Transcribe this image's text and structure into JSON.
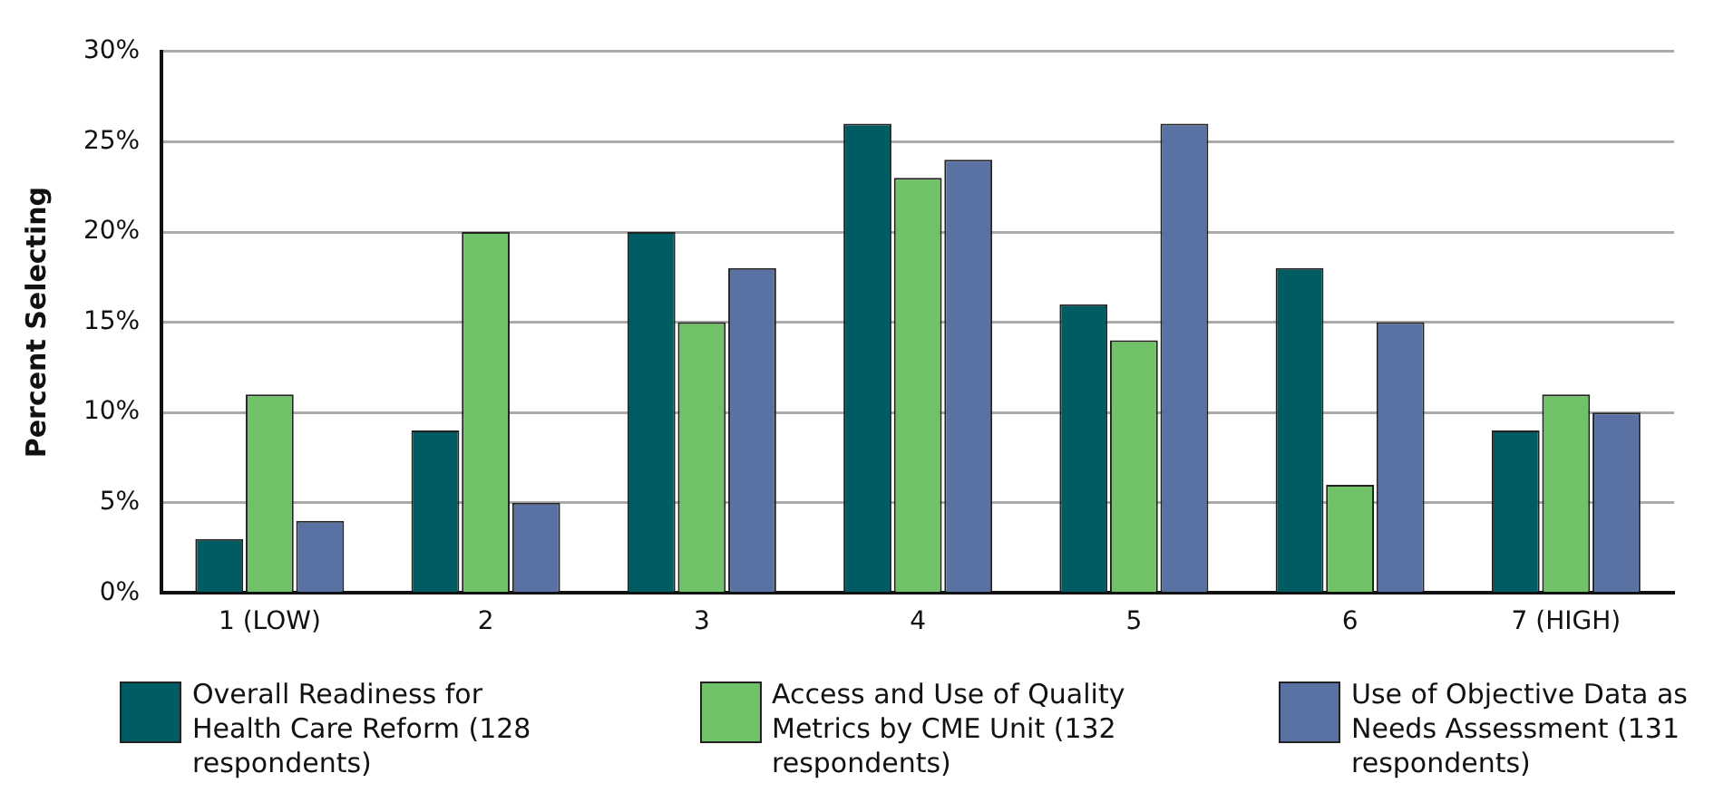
{
  "chart_data": {
    "type": "bar",
    "ylabel": "Percent Selecting",
    "categories": [
      "1 (LOW)",
      "2",
      "3",
      "4",
      "5",
      "6",
      "7 (HIGH)"
    ],
    "series": [
      {
        "name": "Overall Readiness for Health Care Reform (128 respondents)",
        "color": "#005c63",
        "values": [
          3,
          9,
          20,
          26,
          16,
          18,
          9
        ]
      },
      {
        "name": "Access and Use of Quality Metrics by CME Unit (132 respondents)",
        "color": "#70c167",
        "values": [
          11,
          20,
          15,
          23,
          14,
          6,
          11
        ]
      },
      {
        "name": "Use of Objective Data as Needs Assessment (131 respondents)",
        "color": "#5a72a3",
        "values": [
          4,
          5,
          18,
          24,
          26,
          15,
          10
        ]
      }
    ],
    "ylim": [
      0,
      30
    ],
    "yticks": [
      {
        "value": 0,
        "label": "0%"
      },
      {
        "value": 5,
        "label": "5%"
      },
      {
        "value": 10,
        "label": "10%"
      },
      {
        "value": 15,
        "label": "15%"
      },
      {
        "value": 20,
        "label": "20%"
      },
      {
        "value": 25,
        "label": "25%"
      },
      {
        "value": 30,
        "label": "30%"
      }
    ],
    "grid": "y",
    "legend": "bottom"
  }
}
